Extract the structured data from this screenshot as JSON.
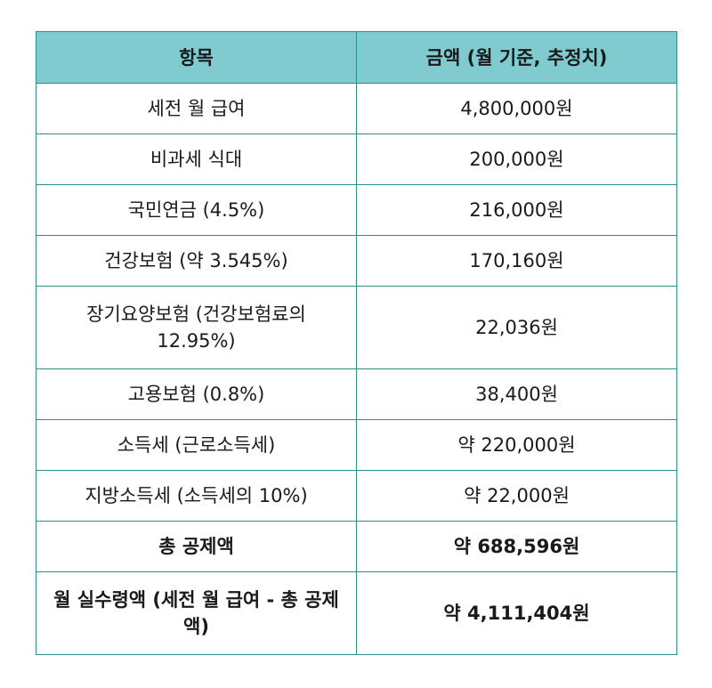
{
  "table": {
    "header": {
      "item": "항목",
      "amount": "금액 (월 기준, 추정치)"
    },
    "rows": [
      {
        "item": "세전 월 급여",
        "amount": "4,800,000원"
      },
      {
        "item": "비과세 식대",
        "amount": "200,000원"
      },
      {
        "item": "국민연금 (4.5%)",
        "amount": "216,000원"
      },
      {
        "item": "건강보험 (약 3.545%)",
        "amount": "170,160원"
      },
      {
        "item": "장기요양보험 (건강보험료의 12.95%)",
        "amount": "22,036원"
      },
      {
        "item": "고용보험 (0.8%)",
        "amount": "38,400원"
      },
      {
        "item": "소득세 (근로소득세)",
        "amount": "약 220,000원"
      },
      {
        "item": "지방소득세 (소득세의 10%)",
        "amount": "약 22,000원"
      },
      {
        "item": "총 공제액",
        "amount": "약 688,596원"
      },
      {
        "item": "월 실수령액 (세전 월 급여 - 총 공제액)",
        "amount": "약 4,111,404원"
      }
    ],
    "colors": {
      "header_bg": "#7fcbd0",
      "border": "#2e8b8b"
    }
  }
}
